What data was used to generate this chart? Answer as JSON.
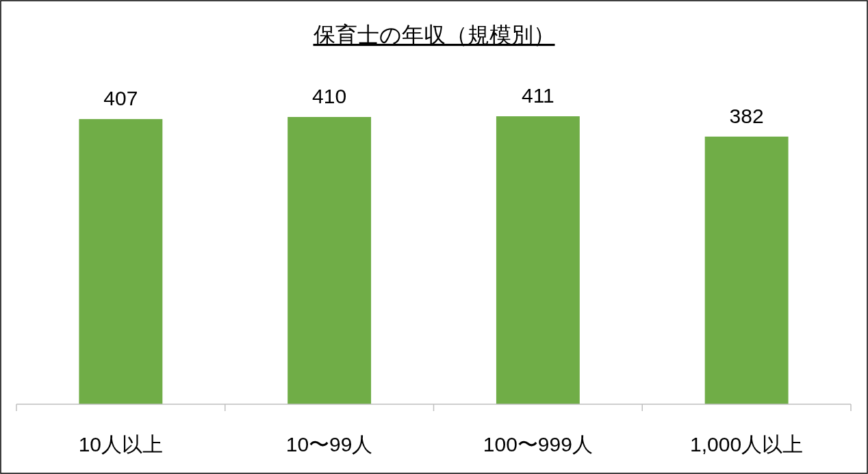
{
  "chart_data": {
    "type": "bar",
    "title": "保育士の年収（規模別）",
    "categories": [
      "10人以上",
      "10〜99人",
      "100〜999人",
      "1,000人以上"
    ],
    "values": [
      407,
      410,
      411,
      382
    ],
    "color": "#70ad47",
    "data_labels": true
  }
}
